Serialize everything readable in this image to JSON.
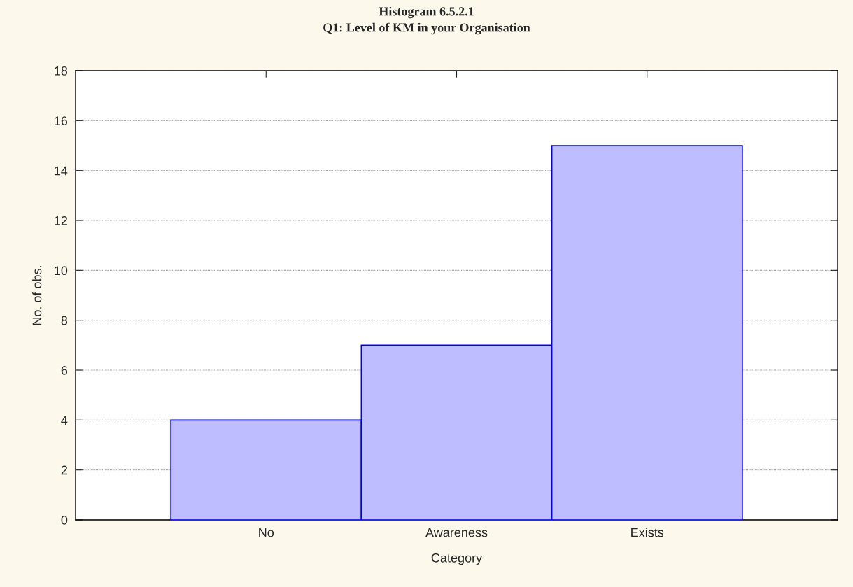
{
  "chart_data": {
    "type": "bar",
    "title": "Histogram 6.5.2.1",
    "subtitle": "Q1: Level of KM in your Organisation",
    "xlabel": "Category",
    "ylabel": "No. of obs.",
    "categories": [
      "No",
      "Awareness",
      "Exists"
    ],
    "series": [
      {
        "color": "#bdbdff",
        "values": [
          4,
          7,
          15
        ]
      }
    ],
    "ylim": [
      0,
      18
    ],
    "yticks": [
      0,
      2,
      4,
      6,
      8,
      10,
      12,
      14,
      16,
      18
    ],
    "grid": "y",
    "legend": false
  }
}
